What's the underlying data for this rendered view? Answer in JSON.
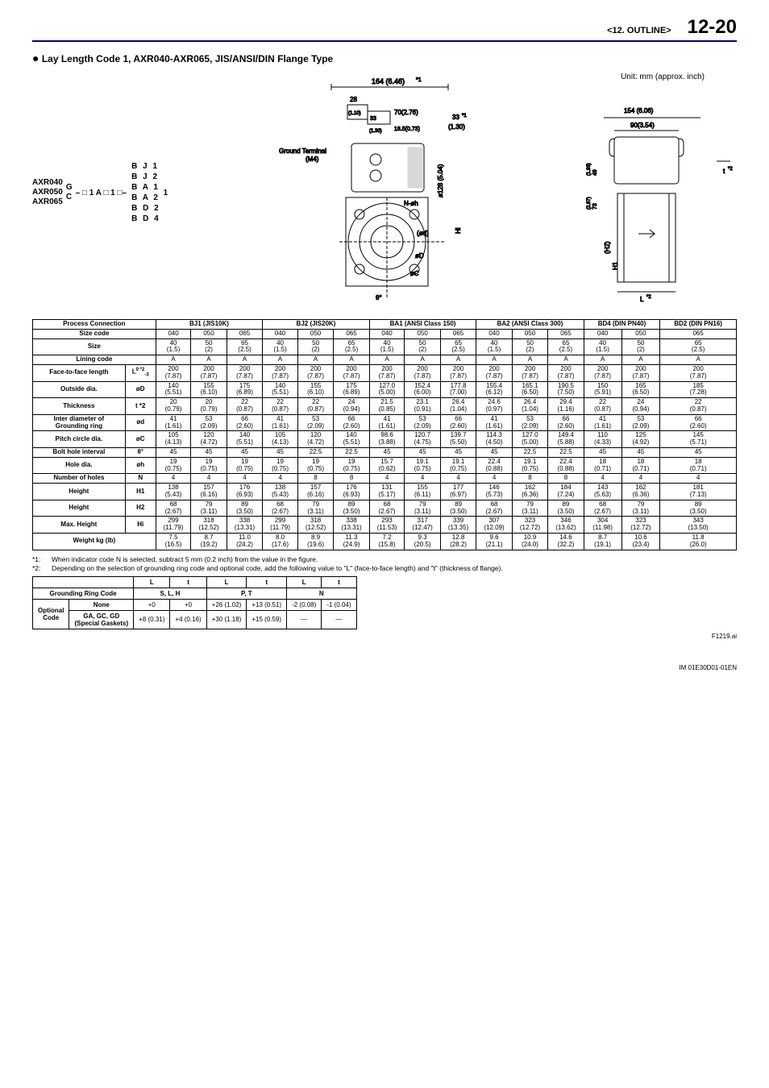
{
  "header": {
    "section": "<12.  OUTLINE>",
    "page": "12-20"
  },
  "title": "Lay Length Code 1, AXR040-AXR065, JIS/ANSI/DIN Flange Type",
  "unit_note": "Unit: mm (approx. inch)",
  "model": {
    "prefixes": [
      "AXR040",
      "AXR050",
      "AXR065"
    ],
    "gc": [
      "G",
      "C"
    ],
    "mid": "– □ 1 A □ 1 □–",
    "flange_codes": [
      "B J 1",
      "B J 2",
      "B A 1",
      "B A 2",
      "B D 2",
      "B D 4"
    ],
    "trail": "1"
  },
  "diagram": {
    "top_dim": "164 (6.46)",
    "top_sup": "*1",
    "d28": "28",
    "d28b": "(1.10)",
    "d33a": "33",
    "d33b": "(1.30)",
    "d70": "70(2.76)",
    "d185": "18.5(0.73)",
    "d33r": "33",
    "d33rs": "*1",
    "d33rb": "(1.30)",
    "gt": "Ground Terminal",
    "gtm": "(M4)",
    "phi128": "ø128 (5.04)",
    "noh": "N-øh",
    "hi": "Hi",
    "od": "(ød)",
    "oD": "øD",
    "oC": "øC",
    "theta": "θ°",
    "r154": "154 (6.06)",
    "r90": "90(3.54)",
    "r49": "49",
    "r49b": "(1.93)",
    "r73": "73",
    "r73b": "(2.87)",
    "h2": "(H2)",
    "h1": "H1",
    "t2": "t",
    "t2s": "*2",
    "l2": "L",
    "l2s": "*2"
  },
  "groups": [
    {
      "name": "BJ1 (JIS10K)",
      "sizes": [
        "040",
        "050",
        "065"
      ]
    },
    {
      "name": "BJ2 (JIS20K)",
      "sizes": [
        "040",
        "050",
        "065"
      ]
    },
    {
      "name": "BA1 (ANSI Class 150)",
      "sizes": [
        "040",
        "050",
        "065"
      ]
    },
    {
      "name": "BA2 (ANSI Class 300)",
      "sizes": [
        "040",
        "050",
        "065"
      ]
    },
    {
      "name": "BD4 (DIN PN40)",
      "sizes": [
        "040",
        "050"
      ]
    },
    {
      "name": "BD2 (DIN PN16)",
      "sizes": [
        "065"
      ]
    }
  ],
  "row_defs": [
    {
      "label": "Process Connection",
      "sym": "",
      "is_group": true
    },
    {
      "label": "Size code",
      "sym": ""
    },
    {
      "label": "Size",
      "sym": ""
    },
    {
      "label": "Lining code",
      "sym": ""
    },
    {
      "label": "Face-to-face length",
      "sym": "L",
      "sup": "0 *2",
      "sub": "-3"
    },
    {
      "label": "Outside dia.",
      "sym": "øD"
    },
    {
      "label": "Thickness",
      "sym": "t *2"
    },
    {
      "label": "Inter diameter of\nGrounding ring",
      "sym": "ød"
    },
    {
      "label": "Pitch circle dia.",
      "sym": "øC"
    },
    {
      "label": "Bolt hole interval",
      "sym": "θ°"
    },
    {
      "label": "Hole dia.",
      "sym": "øh"
    },
    {
      "label": "Number of holes",
      "sym": "N"
    },
    {
      "label": "Height",
      "sym": "H1"
    },
    {
      "label": "Height",
      "sym": "H2"
    },
    {
      "label": "Max. Height",
      "sym": "Hi"
    },
    {
      "label": "Weight kg (lb)",
      "sym": ""
    }
  ],
  "cells": {
    "size": [
      "40\n(1.5)",
      "50\n(2)",
      "65\n(2.5)",
      "40\n(1.5)",
      "50\n(2)",
      "65\n(2.5)",
      "40\n(1.5)",
      "50\n(2)",
      "65\n(2.5)",
      "40\n(1.5)",
      "50\n(2)",
      "65\n(2.5)",
      "40\n(1.5)",
      "50\n(2)",
      "65\n(2.5)"
    ],
    "lining": [
      "A",
      "A",
      "A",
      "A",
      "A",
      "A",
      "A",
      "A",
      "A",
      "A",
      "A",
      "A",
      "A",
      "A",
      "A"
    ],
    "ftf": [
      "200\n(7.87)",
      "200\n(7.87)",
      "200\n(7.87)",
      "200\n(7.87)",
      "200\n(7.87)",
      "200\n(7.87)",
      "200\n(7.87)",
      "200\n(7.87)",
      "200\n(7.87)",
      "200\n(7.87)",
      "200\n(7.87)",
      "200\n(7.87)",
      "200\n(7.87)",
      "200\n(7.87)",
      "200\n(7.87)"
    ],
    "od": [
      "140\n(5.51)",
      "155\n(6.10)",
      "175\n(6.89)",
      "140\n(5.51)",
      "155\n(6.10)",
      "175\n(6.89)",
      "127.0\n(5.00)",
      "152.4\n(6.00)",
      "177.8\n(7.00)",
      "155.4\n(6.12)",
      "165.1\n(6.50)",
      "190.5\n(7.50)",
      "150\n(5.91)",
      "165\n(6.50)",
      "185\n(7.28)"
    ],
    "t": [
      "20\n(0.79)",
      "20\n(0.79)",
      "22\n(0.87)",
      "22\n(0.87)",
      "22\n(0.87)",
      "24\n(0.94)",
      "21.5\n(0.85)",
      "23.1\n(0.91)",
      "26.4\n(1.04)",
      "24.6\n(0.97)",
      "26.4\n(1.04)",
      "29.4\n(1.16)",
      "22\n(0.87)",
      "24\n(0.94)",
      "22\n(0.87)"
    ],
    "id": [
      "41\n(1.61)",
      "53\n(2.09)",
      "66\n(2.60)",
      "41\n(1.61)",
      "53\n(2.09)",
      "66\n(2.60)",
      "41\n(1.61)",
      "53\n(2.09)",
      "66\n(2.60)",
      "41\n(1.61)",
      "53\n(2.09)",
      "66\n(2.60)",
      "41\n(1.61)",
      "53\n(2.09)",
      "66\n(2.60)"
    ],
    "pc": [
      "105\n(4.13)",
      "120\n(4.72)",
      "140\n(5.51)",
      "105\n(4.13)",
      "120\n(4.72)",
      "140\n(5.51)",
      "98.6\n(3.88)",
      "120.7\n(4.75)",
      "139.7\n(5.50)",
      "114.3\n(4.50)",
      "127.0\n(5.00)",
      "149.4\n(5.88)",
      "110\n(4.33)",
      "125\n(4.92)",
      "145\n(5.71)"
    ],
    "bh": [
      "45",
      "45",
      "45",
      "45",
      "22.5",
      "22.5",
      "45",
      "45",
      "45",
      "45",
      "22.5",
      "22.5",
      "45",
      "45",
      "45"
    ],
    "hd": [
      "19\n(0.75)",
      "19\n(0.75)",
      "19\n(0.75)",
      "19\n(0.75)",
      "19\n(0.75)",
      "19\n(0.75)",
      "15.7\n(0.62)",
      "19.1\n(0.75)",
      "19.1\n(0.75)",
      "22.4\n(0.88)",
      "19.1\n(0.75)",
      "22.4\n(0.88)",
      "18\n(0.71)",
      "18\n(0.71)",
      "18\n(0.71)"
    ],
    "nh": [
      "4",
      "4",
      "4",
      "4",
      "8",
      "8",
      "4",
      "4",
      "4",
      "4",
      "8",
      "8",
      "4",
      "4",
      "4"
    ],
    "h1": [
      "138\n(5.43)",
      "157\n(6.16)",
      "176\n(6.93)",
      "138\n(5.43)",
      "157\n(6.16)",
      "176\n(6.93)",
      "131\n(5.17)",
      "155\n(6.11)",
      "177\n(6.97)",
      "146\n(5.73)",
      "162\n(6.36)",
      "184\n(7.24)",
      "143\n(5.63)",
      "162\n(6.36)",
      "181\n(7.13)"
    ],
    "h2": [
      "68\n(2.67)",
      "79\n(3.11)",
      "89\n(3.50)",
      "68\n(2.67)",
      "79\n(3.11)",
      "89\n(3.50)",
      "68\n(2.67)",
      "79\n(3.11)",
      "89\n(3.50)",
      "68\n(2.67)",
      "79\n(3.11)",
      "89\n(3.50)",
      "68\n(2.67)",
      "79\n(3.11)",
      "89\n(3.50)"
    ],
    "hi": [
      "299\n(11.79)",
      "318\n(12.52)",
      "338\n(13.31)",
      "299\n(11.79)",
      "318\n(12.52)",
      "338\n(13.31)",
      "293\n(11.53)",
      "317\n(12.47)",
      "339\n(13.35)",
      "307\n(12.09)",
      "323\n(12.72)",
      "346\n(13.62)",
      "304\n(11.98)",
      "323\n(12.72)",
      "343\n(13.50)"
    ],
    "wt": [
      "7.5\n(16.5)",
      "8.7\n(19.2)",
      "11.0\n(24.2)",
      "8.0\n(17.6)",
      "8.9\n(19.6)",
      "11.3\n(24.9)",
      "7.2\n(15.8)",
      "9.3\n(20.5)",
      "12.8\n(28.2)",
      "9.6\n(21.1)",
      "10.9\n(24.0)",
      "14.6\n(32.2)",
      "8.7\n(19.1)",
      "10.6\n(23.4)",
      "11.8\n(26.0)"
    ]
  },
  "notes": [
    {
      "n": "*1:",
      "t": "When indicator code N is selected, subtract 5 mm (0.2 inch) from the value in the figure."
    },
    {
      "n": "*2:",
      "t": "Depending on the selection of grounding ring code and optional code, add the following value to \"L\" (face-to-face length) and \"t\" (thickness of flange)."
    }
  ],
  "gr": {
    "head1": "Grounding Ring Code",
    "cols": [
      "L",
      "t",
      "L",
      "t",
      "L",
      "t"
    ],
    "codes": [
      "S, L, H",
      "P, T",
      "N"
    ],
    "rows": [
      {
        "l1": "Optional\nCode",
        "l2": "None",
        "v": [
          "+0",
          "+0",
          "+26 (1.02)",
          "+13 (0.51)",
          "-2 (0.08)",
          "-1 (0.04)"
        ]
      },
      {
        "l2": "GA, GC, GD\n(Special Gaskets)",
        "v": [
          "+8 (0.31)",
          "+4 (0.16)",
          "+30 (1.18)",
          "+15 (0.59)",
          "—",
          "—"
        ]
      }
    ]
  },
  "figref": "F1219.ai",
  "footer": "IM 01E30D01-01EN"
}
